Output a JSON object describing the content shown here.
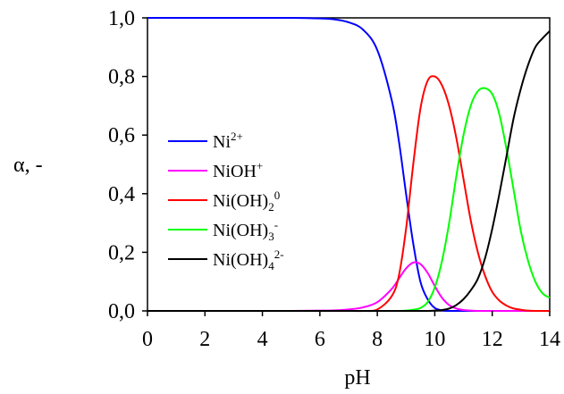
{
  "chart_data": {
    "type": "line",
    "xlabel": "pH",
    "ylabel": "α, -",
    "xlim": [
      0,
      14
    ],
    "ylim": [
      0,
      1
    ],
    "grid": false,
    "legend_position": "left-center",
    "x_ticks": [
      "0",
      "2",
      "4",
      "6",
      "8",
      "10",
      "12",
      "14"
    ],
    "y_ticks": [
      "0,0",
      "0,2",
      "0,4",
      "0,6",
      "0,8",
      "1,0"
    ],
    "legend": [
      {
        "key": "ni2",
        "base": "Ni",
        "sub": "",
        "sup": "2+"
      },
      {
        "key": "nioh",
        "base": "NiOH",
        "sub": "",
        "sup": "+"
      },
      {
        "key": "nioh2",
        "base": "Ni(OH)",
        "sub": "2",
        "sup": "0"
      },
      {
        "key": "nioh3",
        "base": "Ni(OH)",
        "sub": "3",
        "sup": "-"
      },
      {
        "key": "nioh4",
        "base": "Ni(OH)",
        "sub": "4",
        "sup": "2-"
      }
    ],
    "x": [
      0,
      1,
      2,
      3,
      4,
      5,
      6,
      6.5,
      7,
      7.5,
      8,
      8.5,
      8.75,
      9,
      9.25,
      9.5,
      9.75,
      10,
      10.25,
      10.5,
      10.75,
      11,
      11.25,
      11.5,
      11.75,
      12,
      12.25,
      12.5,
      12.75,
      13,
      13.25,
      13.5,
      13.75,
      14
    ],
    "series": [
      {
        "key": "ni2",
        "color": "#0000ff",
        "values": [
          1,
          1,
          1,
          1,
          1,
          1,
          0.998,
          0.995,
          0.985,
          0.96,
          0.89,
          0.72,
          0.58,
          0.4,
          0.23,
          0.1,
          0.04,
          0.01,
          0.002,
          0,
          0,
          0,
          0,
          0,
          0,
          0,
          0,
          0,
          0,
          0,
          0,
          0,
          0,
          0
        ]
      },
      {
        "key": "nioh",
        "color": "#ff00ff",
        "values": [
          0,
          0,
          0,
          0,
          0,
          0,
          0.001,
          0.002,
          0.005,
          0.012,
          0.03,
          0.075,
          0.11,
          0.145,
          0.165,
          0.16,
          0.13,
          0.085,
          0.045,
          0.02,
          0.008,
          0.003,
          0.001,
          0,
          0,
          0,
          0,
          0,
          0,
          0,
          0,
          0,
          0,
          0
        ]
      },
      {
        "key": "nioh2",
        "color": "#ff0000",
        "values": [
          0,
          0,
          0,
          0,
          0,
          0,
          0,
          0,
          0,
          0,
          0.005,
          0.05,
          0.12,
          0.28,
          0.5,
          0.69,
          0.785,
          0.8,
          0.77,
          0.7,
          0.59,
          0.45,
          0.31,
          0.2,
          0.12,
          0.065,
          0.035,
          0.018,
          0.008,
          0.004,
          0.001,
          0,
          0,
          0
        ]
      },
      {
        "key": "nioh3",
        "color": "#00ff00",
        "values": [
          0,
          0,
          0,
          0,
          0,
          0,
          0,
          0,
          0,
          0,
          0,
          0,
          0,
          0.001,
          0.004,
          0.01,
          0.03,
          0.08,
          0.17,
          0.3,
          0.46,
          0.6,
          0.7,
          0.75,
          0.76,
          0.74,
          0.67,
          0.55,
          0.41,
          0.27,
          0.17,
          0.1,
          0.06,
          0.045
        ]
      },
      {
        "key": "nioh4",
        "color": "#000000",
        "values": [
          0,
          0,
          0,
          0,
          0,
          0,
          0,
          0,
          0,
          0,
          0,
          0,
          0,
          0,
          0,
          0,
          0,
          0.001,
          0.003,
          0.008,
          0.02,
          0.04,
          0.07,
          0.11,
          0.18,
          0.28,
          0.4,
          0.53,
          0.66,
          0.76,
          0.84,
          0.9,
          0.93,
          0.955
        ]
      }
    ]
  }
}
